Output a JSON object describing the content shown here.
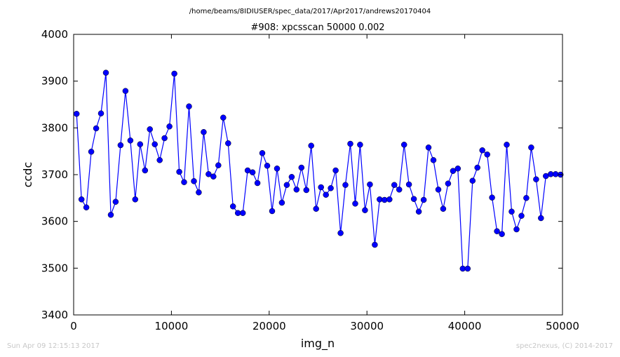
{
  "chart_data": {
    "type": "line",
    "suptitle": "/home/beams/8IDIUSER/spec_data/2017/Apr2017/andrews20170404",
    "title": "#908: xpcsscan 50000 0.002",
    "xlabel": "img_n",
    "ylabel": "ccdc",
    "xlim": [
      0,
      50000
    ],
    "ylim": [
      3400,
      4000
    ],
    "xticks": [
      0,
      10000,
      20000,
      30000,
      40000,
      50000
    ],
    "yticks": [
      3400,
      3500,
      3600,
      3700,
      3800,
      3900,
      4000
    ],
    "grid": false,
    "marker": "circle",
    "color": "#0000ff",
    "series": [
      {
        "x": [
          300,
          800,
          1300,
          1800,
          2300,
          2800,
          3300,
          3800,
          4300,
          4800,
          5300,
          5800,
          6300,
          6800,
          7300,
          7800,
          8300,
          8800,
          9300,
          9800,
          10300,
          10800,
          11300,
          11800,
          12300,
          12800,
          13300,
          13800,
          14300,
          14800,
          15300,
          15800,
          16300,
          16800,
          17300,
          17800,
          18300,
          18800,
          19300,
          19800,
          20300,
          20800,
          21300,
          21800,
          22300,
          22800,
          23300,
          23800,
          24300,
          24800,
          25300,
          25800,
          26300,
          26800,
          27300,
          27800,
          28300,
          28800,
          29300,
          29800,
          30300,
          30800,
          31300,
          31800,
          32300,
          32800,
          33300,
          33800,
          34300,
          34800,
          35300,
          35800,
          36300,
          36800,
          37300,
          37800,
          38300,
          38800,
          39300,
          39800,
          40300,
          40800,
          41300,
          41800,
          42300,
          42800,
          43300,
          43800,
          44300,
          44800,
          45300,
          45800,
          46300,
          46800,
          47300,
          47800,
          48300,
          48800,
          49300,
          49800
        ],
        "y": [
          3830,
          3647,
          3630,
          3749,
          3799,
          3831,
          3918,
          3614,
          3642,
          3763,
          3879,
          3773,
          3647,
          3765,
          3709,
          3797,
          3765,
          3731,
          3778,
          3803,
          3916,
          3706,
          3684,
          3846,
          3686,
          3662,
          3791,
          3701,
          3696,
          3720,
          3822,
          3767,
          3632,
          3618,
          3618,
          3709,
          3705,
          3682,
          3746,
          3719,
          3622,
          3713,
          3640,
          3678,
          3695,
          3668,
          3715,
          3667,
          3762,
          3627,
          3673,
          3657,
          3671,
          3709,
          3575,
          3678,
          3766,
          3638,
          3764,
          3624,
          3679,
          3550,
          3647,
          3646,
          3647,
          3678,
          3668,
          3764,
          3679,
          3648,
          3621,
          3646,
          3758,
          3731,
          3668,
          3627,
          3681,
          3708,
          3713,
          3499,
          3499,
          3687,
          3715,
          3752,
          3743,
          3651,
          3579,
          3573,
          3764,
          3621,
          3583,
          3612,
          3650,
          3758,
          3690,
          3607,
          3697,
          3701,
          3701,
          3700
        ]
      }
    ]
  },
  "footer": {
    "left": "Sun Apr 09 12:15:13 2017",
    "right": "spec2nexus, (C) 2014-2017"
  }
}
